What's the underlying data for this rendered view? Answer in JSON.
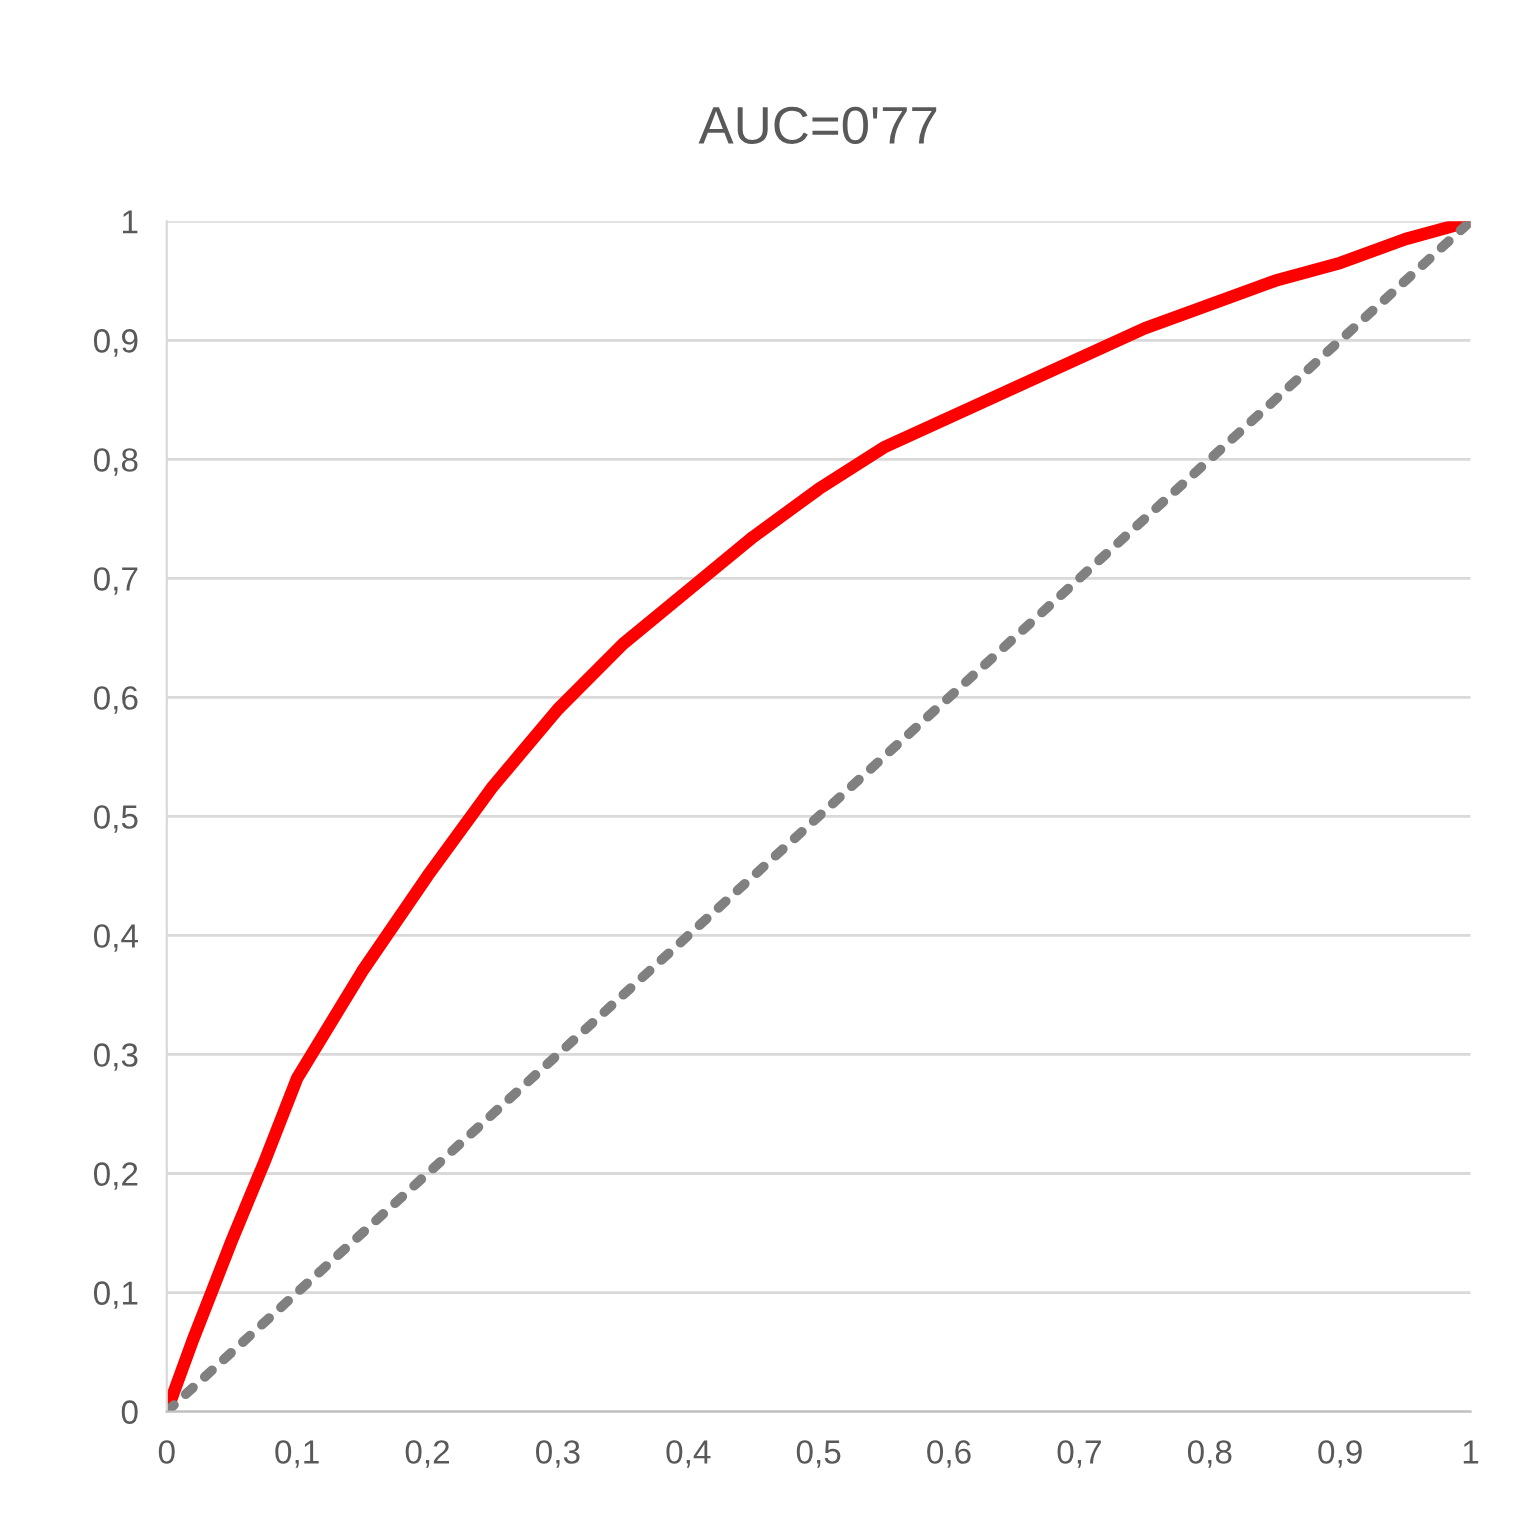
{
  "chart_data": {
    "type": "line",
    "title": "AUC=0'77",
    "series": [
      {
        "color": "#ff0000",
        "line_style": "solid",
        "x": [
          0,
          0.02,
          0.05,
          0.075,
          0.1,
          0.15,
          0.2,
          0.25,
          0.3,
          0.35,
          0.4,
          0.45,
          0.5,
          0.55,
          0.6,
          0.65,
          0.7,
          0.75,
          0.8,
          0.85,
          0.9,
          0.95,
          1
        ],
        "values": [
          0,
          0.06,
          0.144,
          0.21,
          0.28,
          0.37,
          0.45,
          0.525,
          0.59,
          0.645,
          0.69,
          0.735,
          0.775,
          0.81,
          0.835,
          0.86,
          0.885,
          0.91,
          0.93,
          0.95,
          0.965,
          0.985,
          1
        ]
      },
      {
        "color": "#808080",
        "line_style": "dotted",
        "x": [
          0,
          1
        ],
        "values": [
          0,
          1
        ]
      }
    ],
    "xlim": [
      0,
      1
    ],
    "ylim": [
      0,
      1
    ],
    "xticks": [
      0,
      {
        "value": 0.1,
        "label": "0,1"
      },
      {
        "value": 0.2,
        "label": "0,2"
      },
      {
        "value": 0.3,
        "label": "0,3"
      },
      {
        "value": 0.4,
        "label": "0,4"
      },
      {
        "value": 0.5,
        "label": "0,5"
      },
      {
        "value": 0.6,
        "label": "0,6"
      },
      {
        "value": 0.7,
        "label": "0,7"
      },
      {
        "value": 0.8,
        "label": "0,8"
      },
      {
        "value": 0.9,
        "label": "0,9"
      },
      1
    ],
    "yticks": [
      0,
      {
        "value": 0.1,
        "label": "0,1"
      },
      {
        "value": 0.2,
        "label": "0,2"
      },
      {
        "value": 0.3,
        "label": "0,3"
      },
      {
        "value": 0.4,
        "label": "0,4"
      },
      {
        "value": 0.5,
        "label": "0,5"
      },
      {
        "value": 0.6,
        "label": "0,6"
      },
      {
        "value": 0.7,
        "label": "0,7"
      },
      {
        "value": 0.8,
        "label": "0,8"
      },
      {
        "value": 0.9,
        "label": "0,9"
      },
      1
    ],
    "grid": "y",
    "marker": "none"
  }
}
